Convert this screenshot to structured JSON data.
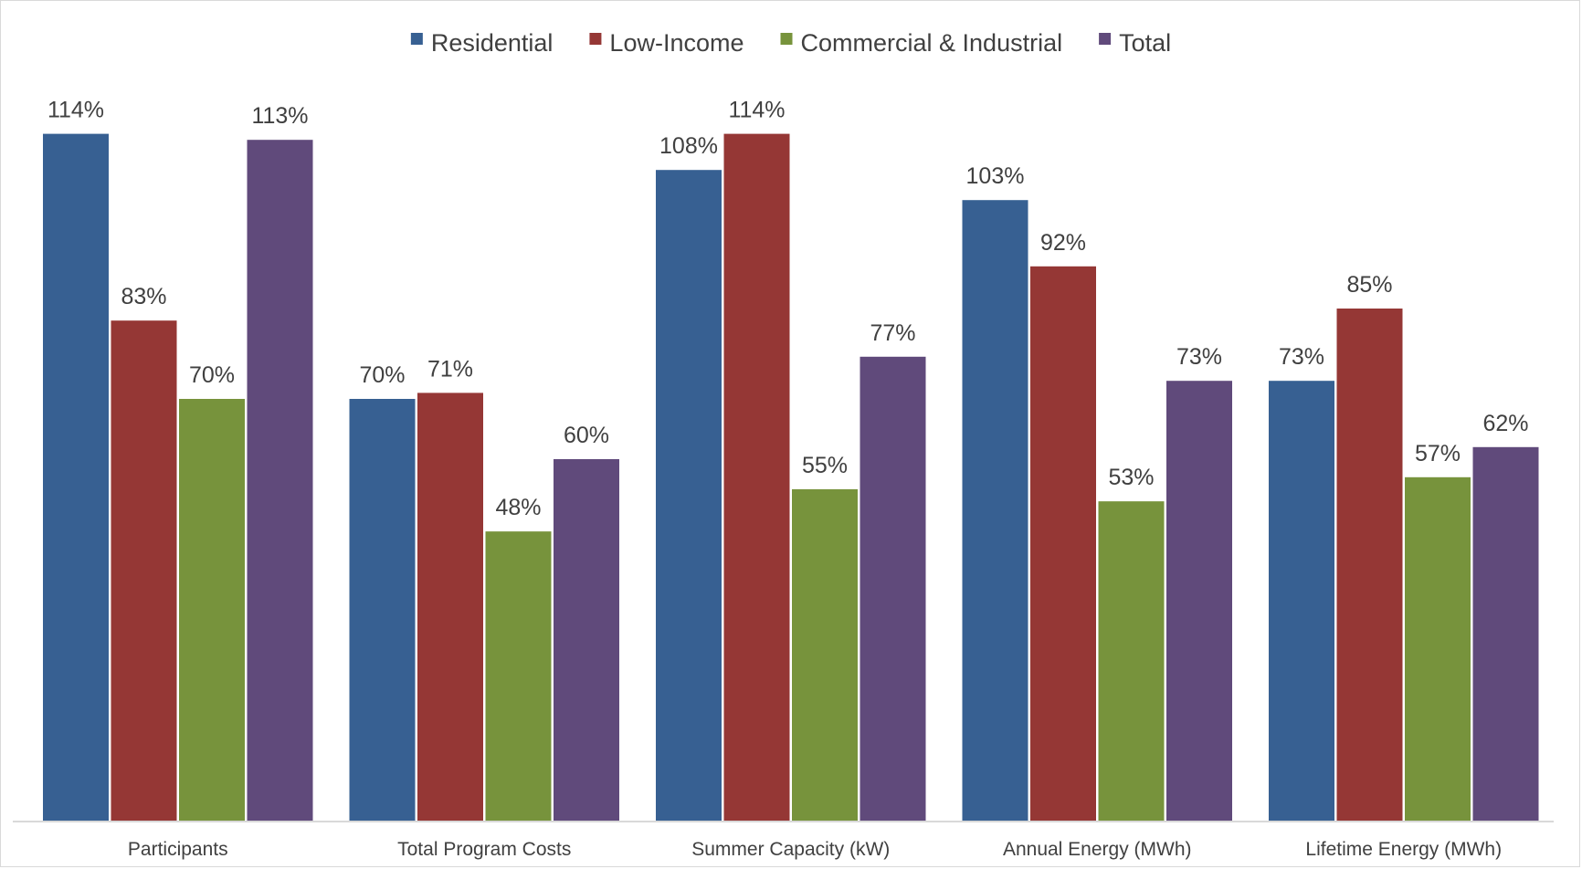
{
  "chart_data": {
    "type": "bar",
    "categories": [
      "Participants",
      "Total Program Costs",
      "Summer Capacity (kW)",
      "Annual Energy (MWh)",
      "Lifetime Energy (MWh)"
    ],
    "series": [
      {
        "name": "Residential",
        "color": "#376092",
        "values": [
          114,
          70,
          108,
          103,
          73
        ],
        "labels": [
          "114%",
          "70%",
          "108%",
          "103%",
          "73%"
        ]
      },
      {
        "name": "Low-Income",
        "color": "#953735",
        "values": [
          83,
          71,
          114,
          92,
          85
        ],
        "labels": [
          "83%",
          "71%",
          "114%",
          "92%",
          "85%"
        ]
      },
      {
        "name": "Commercial & Industrial",
        "color": "#77933c",
        "values": [
          70,
          48,
          55,
          53,
          57
        ],
        "labels": [
          "70%",
          "48%",
          "55%",
          "53%",
          "57%"
        ]
      },
      {
        "name": "Total",
        "color": "#604a7b",
        "values": [
          113,
          60,
          77,
          73,
          62
        ],
        "labels": [
          "113%",
          "60%",
          "77%",
          "73%",
          "62%"
        ]
      }
    ],
    "ylim": [
      0,
      115
    ],
    "y_unit": "%",
    "grid": false,
    "legend_position": "top"
  }
}
